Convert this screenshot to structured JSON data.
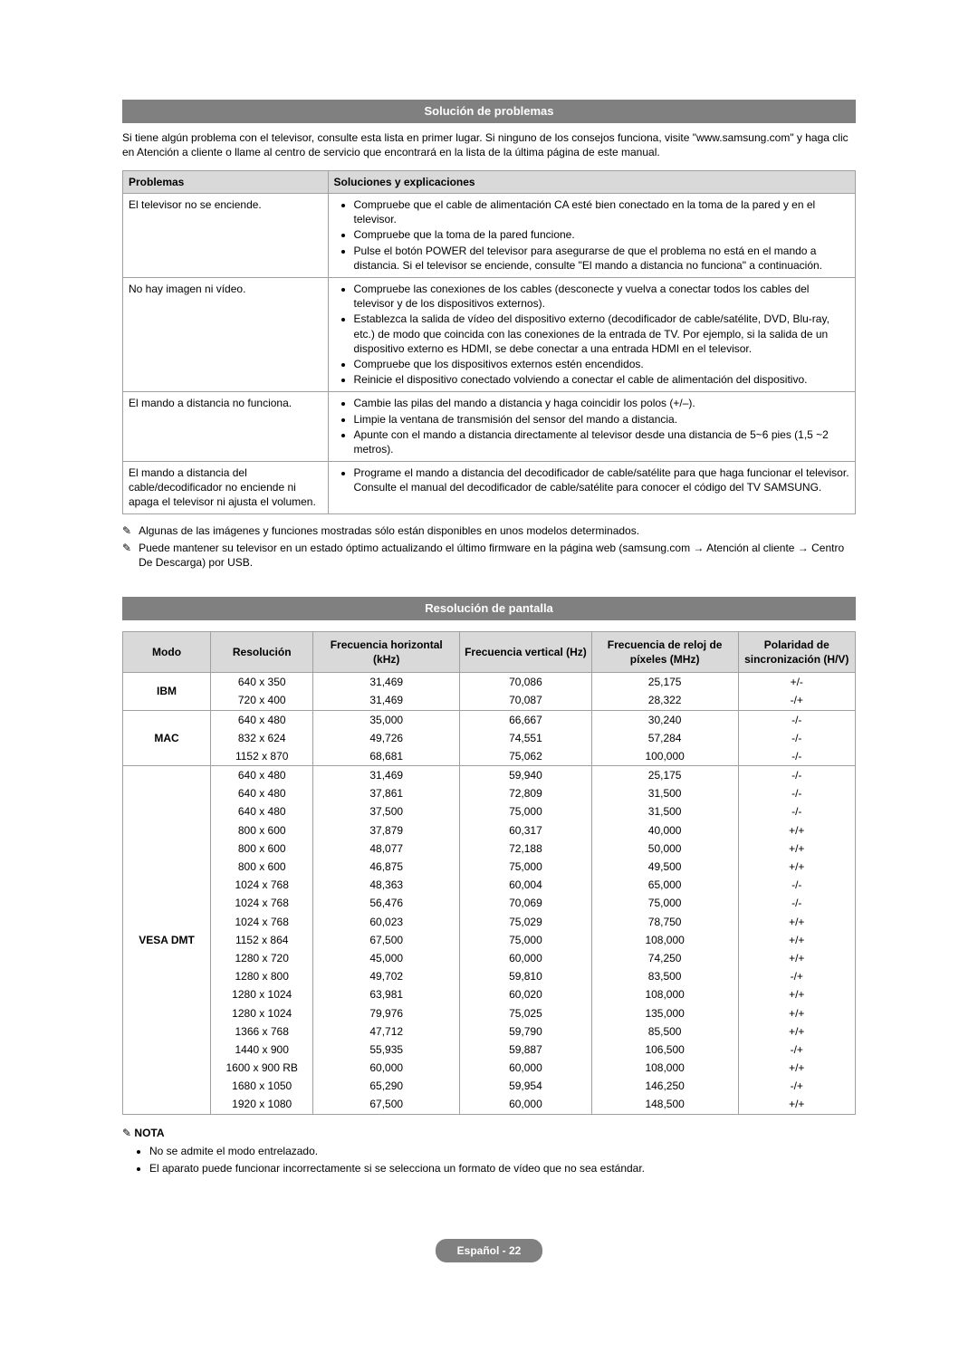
{
  "section1": {
    "title": "Solución de problemas",
    "intro": "Si tiene algún problema con el televisor, consulte esta lista en primer lugar. Si ninguno de los consejos funciona, visite \"www.samsung.com\" y haga clic en Atención a cliente o llame al centro de servicio que encontrará en la lista de la última página de este manual.",
    "headers": {
      "problems": "Problemas",
      "solutions": "Soluciones y explicaciones"
    },
    "rows": [
      {
        "problem": "El televisor no se enciende.",
        "items": [
          "Compruebe que el cable de alimentación CA esté bien conectado en la toma de la pared y en el televisor.",
          "Compruebe que la toma de la pared funcione.",
          "Pulse el botón POWER del televisor para asegurarse de que el problema no está en el mando a distancia. Si el televisor se enciende, consulte \"El mando a distancia no funciona\" a continuación."
        ]
      },
      {
        "problem": "No hay imagen ni vídeo.",
        "items": [
          "Compruebe las conexiones de los cables (desconecte y vuelva a conectar todos los cables del televisor y de los dispositivos externos).",
          "Establezca la salida de vídeo del dispositivo externo (decodificador de cable/satélite, DVD, Blu-ray, etc.) de modo que coincida con las conexiones de la entrada de TV. Por ejemplo, si la salida de un dispositivo externo es HDMI, se debe conectar a una entrada HDMI en el televisor.",
          "Compruebe que los dispositivos externos estén encendidos.",
          "Reinicie el dispositivo conectado volviendo a conectar el cable de alimentación del dispositivo."
        ]
      },
      {
        "problem": "El mando a distancia no funciona.",
        "items": [
          "Cambie las pilas del mando a distancia y haga coincidir los polos (+/–).",
          "Limpie la ventana de transmisión del sensor del mando a distancia.",
          "Apunte con el mando a distancia directamente al televisor desde una distancia de 5~6 pies (1,5 ~2 metros)."
        ]
      },
      {
        "problem": "El mando a distancia del cable/decodificador no enciende ni apaga el televisor ni ajusta el volumen.",
        "items": [
          "Programe el mando a distancia del decodificador de cable/satélite para que haga funcionar el televisor. Consulte el manual del decodificador de cable/satélite para conocer el código del TV SAMSUNG."
        ]
      }
    ],
    "notes": [
      "Algunas de las imágenes y funciones mostradas sólo están disponibles en unos modelos determinados.",
      "Puede mantener su televisor en un estado óptimo actualizando el último firmware en la página web (samsung.com → Atención al cliente → Centro De Descarga) por USB."
    ]
  },
  "section2": {
    "title": "Resolución de pantalla",
    "headers": {
      "mode": "Modo",
      "resolution": "Resolución",
      "hfreq": "Frecuencia horizontal (kHz)",
      "vfreq": "Frecuencia vertical (Hz)",
      "pclock": "Frecuencia de reloj de píxeles (MHz)",
      "sync": "Polaridad de sincronización (H/V)"
    },
    "groups": [
      {
        "mode": "IBM",
        "rows": [
          [
            "640 x 350",
            "31,469",
            "70,086",
            "25,175",
            "+/-"
          ],
          [
            "720 x 400",
            "31,469",
            "70,087",
            "28,322",
            "-/+"
          ]
        ]
      },
      {
        "mode": "MAC",
        "rows": [
          [
            "640 x 480",
            "35,000",
            "66,667",
            "30,240",
            "-/-"
          ],
          [
            "832 x 624",
            "49,726",
            "74,551",
            "57,284",
            "-/-"
          ],
          [
            "1152 x 870",
            "68,681",
            "75,062",
            "100,000",
            "-/-"
          ]
        ]
      },
      {
        "mode": "VESA DMT",
        "rows": [
          [
            "640 x 480",
            "31,469",
            "59,940",
            "25,175",
            "-/-"
          ],
          [
            "640 x 480",
            "37,861",
            "72,809",
            "31,500",
            "-/-"
          ],
          [
            "640 x 480",
            "37,500",
            "75,000",
            "31,500",
            "-/-"
          ],
          [
            "800 x 600",
            "37,879",
            "60,317",
            "40,000",
            "+/+"
          ],
          [
            "800 x 600",
            "48,077",
            "72,188",
            "50,000",
            "+/+"
          ],
          [
            "800 x 600",
            "46,875",
            "75,000",
            "49,500",
            "+/+"
          ],
          [
            "1024 x 768",
            "48,363",
            "60,004",
            "65,000",
            "-/-"
          ],
          [
            "1024 x 768",
            "56,476",
            "70,069",
            "75,000",
            "-/-"
          ],
          [
            "1024 x 768",
            "60,023",
            "75,029",
            "78,750",
            "+/+"
          ],
          [
            "1152 x 864",
            "67,500",
            "75,000",
            "108,000",
            "+/+"
          ],
          [
            "1280 x 720",
            "45,000",
            "60,000",
            "74,250",
            "+/+"
          ],
          [
            "1280 x 800",
            "49,702",
            "59,810",
            "83,500",
            "-/+"
          ],
          [
            "1280 x 1024",
            "63,981",
            "60,020",
            "108,000",
            "+/+"
          ],
          [
            "1280 x 1024",
            "79,976",
            "75,025",
            "135,000",
            "+/+"
          ],
          [
            "1366 x 768",
            "47,712",
            "59,790",
            "85,500",
            "+/+"
          ],
          [
            "1440 x 900",
            "55,935",
            "59,887",
            "106,500",
            "-/+"
          ],
          [
            "1600 x 900 RB",
            "60,000",
            "60,000",
            "108,000",
            "+/+"
          ],
          [
            "1680 x 1050",
            "65,290",
            "59,954",
            "146,250",
            "-/+"
          ],
          [
            "1920 x 1080",
            "67,500",
            "60,000",
            "148,500",
            "+/+"
          ]
        ]
      }
    ],
    "nota": {
      "label": "NOTA",
      "items": [
        "No se admite el modo entrelazado.",
        "El aparato puede funcionar incorrectamente si se selecciona un formato de vídeo que no sea estándar."
      ]
    }
  },
  "footer": {
    "language": "Español",
    "page": "22"
  },
  "icons": {
    "note_prefix": "✎"
  }
}
